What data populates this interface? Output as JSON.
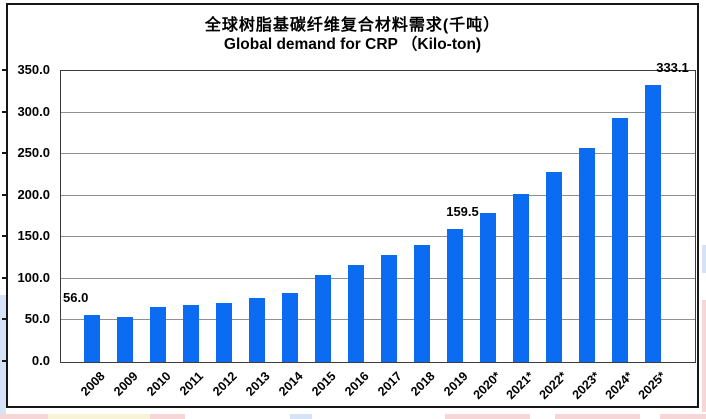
{
  "chart_data": {
    "type": "bar",
    "title": "全球树脂基碳纤维复合材料需求(千吨）",
    "subtitle": "Global demand for CRP （Kilo-ton)",
    "categories": [
      "2008",
      "2009",
      "2010",
      "2011",
      "2012",
      "2013",
      "2014",
      "2015",
      "2016",
      "2017",
      "2018",
      "2019",
      "2020*",
      "2021*",
      "2022*",
      "2023*",
      "2024*",
      "2025*"
    ],
    "values": [
      56.0,
      54.0,
      66.0,
      68.0,
      71.5,
      76.5,
      82.5,
      104.5,
      116.5,
      128.5,
      141.0,
      159.5,
      179.5,
      202.5,
      229.0,
      258.0,
      293.0,
      333.1
    ],
    "unit": "Kilo-ton",
    "ylim": [
      0,
      350
    ],
    "ytick_step": 50,
    "ytick_labels": [
      "350.0",
      "300.0",
      "250.0",
      "200.0",
      "150.0",
      "100.0",
      "50.0",
      "0.0"
    ],
    "grid": true,
    "legend": "none",
    "bar_color": "#0b6cf1",
    "value_labels": [
      {
        "category": "2008",
        "text": "56.0",
        "anchor": "left",
        "dx": 2
      },
      {
        "category": "2019",
        "text": "159.5",
        "anchor": "center",
        "dx": 8
      },
      {
        "category": "2025*",
        "text": "333.1",
        "anchor": "center",
        "dx": 20
      }
    ]
  },
  "page_edges": {
    "left_strip_color": "#d6e2f5",
    "right_blue_color": "#d6e2f5",
    "pink_color": "#f6d6d6",
    "cream_color": "#f8f3d6"
  }
}
